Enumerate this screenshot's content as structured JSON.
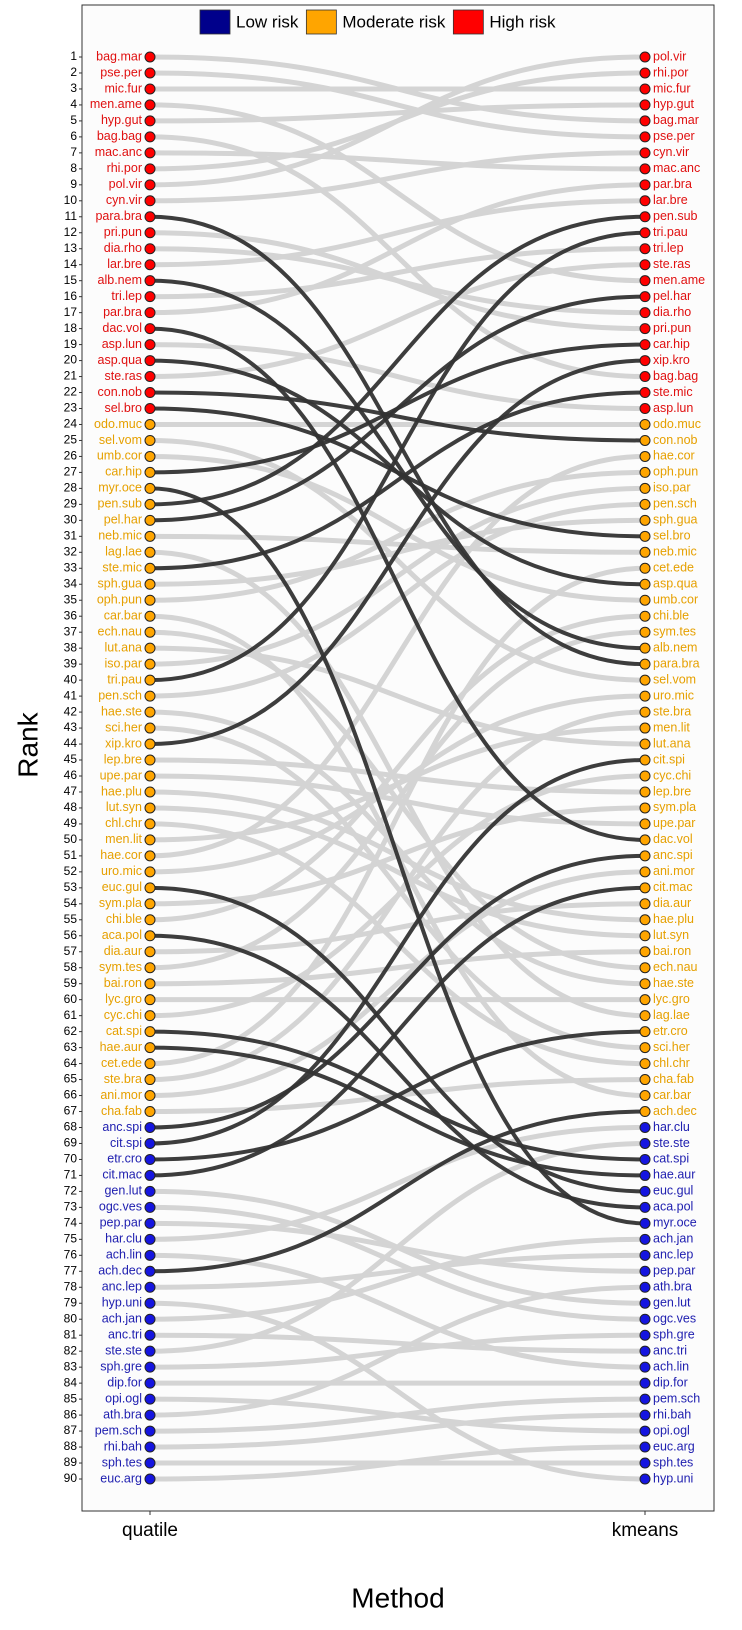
{
  "chart_data": {
    "type": "bump",
    "x_label": "Method",
    "y_label": "Rank",
    "ylim": [
      90,
      1
    ],
    "yticks": [
      1,
      2,
      3,
      4,
      5,
      6,
      7,
      8,
      9,
      10,
      11,
      12,
      13,
      14,
      15,
      16,
      17,
      18,
      19,
      20,
      21,
      22,
      23,
      24,
      25,
      26,
      27,
      28,
      29,
      30,
      31,
      32,
      33,
      34,
      35,
      36,
      37,
      38,
      39,
      40,
      41,
      42,
      43,
      44,
      45,
      46,
      47,
      48,
      49,
      50,
      51,
      52,
      53,
      54,
      55,
      56,
      57,
      58,
      59,
      60,
      61,
      62,
      63,
      64,
      65,
      66,
      67,
      68,
      69,
      70,
      71,
      72,
      73,
      74,
      75,
      76,
      77,
      78,
      79,
      80,
      81,
      82,
      83,
      84,
      85,
      86,
      87,
      88,
      89,
      90
    ],
    "columns": [
      {
        "name": "quatile",
        "labels": [
          "bag.mar",
          "pse.per",
          "mic.fur",
          "men.ame",
          "hyp.gut",
          "bag.bag",
          "mac.anc",
          "rhi.por",
          "pol.vir",
          "cyn.vir",
          "para.bra",
          "pri.pun",
          "dia.rho",
          "lar.bre",
          "alb.nem",
          "tri.lep",
          "par.bra",
          "dac.vol",
          "asp.lun",
          "asp.qua",
          "ste.ras",
          "con.nob",
          "sel.bro",
          "odo.muc",
          "sel.vom",
          "umb.cor",
          "car.hip",
          "myr.oce",
          "pen.sub",
          "pel.har",
          "neb.mic",
          "lag.lae",
          "ste.mic",
          "sph.gua",
          "oph.pun",
          "car.bar",
          "ech.nau",
          "lut.ana",
          "iso.par",
          "tri.pau",
          "pen.sch",
          "hae.ste",
          "sci.her",
          "xip.kro",
          "lep.bre",
          "upe.par",
          "hae.plu",
          "lut.syn",
          "chl.chr",
          "men.lit",
          "hae.cor",
          "uro.mic",
          "euc.gul",
          "sym.pla",
          "chi.ble",
          "aca.pol",
          "dia.aur",
          "sym.tes",
          "bai.ron",
          "lyc.gro",
          "cyc.chi",
          "cat.spi",
          "hae.aur",
          "cet.ede",
          "ste.bra",
          "ani.mor",
          "cha.fab",
          "anc.spi",
          "cit.spi",
          "etr.cro",
          "cit.mac",
          "gen.lut",
          "ogc.ves",
          "pep.par",
          "har.clu",
          "ach.lin",
          "ach.dec",
          "anc.lep",
          "hyp.uni",
          "ach.jan",
          "anc.tri",
          "ste.ste",
          "sph.gre",
          "dip.for",
          "opi.ogl",
          "ath.bra",
          "pem.sch",
          "rhi.bah",
          "sph.tes",
          "euc.arg"
        ]
      },
      {
        "name": "kmeans",
        "labels": [
          "pol.vir",
          "rhi.por",
          "mic.fur",
          "hyp.gut",
          "bag.mar",
          "pse.per",
          "cyn.vir",
          "mac.anc",
          "par.bra",
          "lar.bre",
          "pen.sub",
          "tri.pau",
          "tri.lep",
          "ste.ras",
          "men.ame",
          "pel.har",
          "dia.rho",
          "pri.pun",
          "car.hip",
          "xip.kro",
          "bag.bag",
          "ste.mic",
          "asp.lun",
          "odo.muc",
          "con.nob",
          "hae.cor",
          "oph.pun",
          "iso.par",
          "pen.sch",
          "sph.gua",
          "sel.bro",
          "neb.mic",
          "cet.ede",
          "asp.qua",
          "umb.cor",
          "chi.ble",
          "sym.tes",
          "alb.nem",
          "para.bra",
          "sel.vom",
          "uro.mic",
          "ste.bra",
          "men.lit",
          "lut.ana",
          "cit.spi",
          "cyc.chi",
          "lep.bre",
          "sym.pla",
          "upe.par",
          "dac.vol",
          "anc.spi",
          "ani.mor",
          "cit.mac",
          "dia.aur",
          "hae.plu",
          "lut.syn",
          "bai.ron",
          "ech.nau",
          "hae.ste",
          "lyc.gro",
          "lag.lae",
          "etr.cro",
          "sci.her",
          "chl.chr",
          "cha.fab",
          "car.bar",
          "ach.dec",
          "har.clu",
          "ste.ste",
          "cat.spi",
          "hae.aur",
          "euc.gul",
          "aca.pol",
          "myr.oce",
          "ach.jan",
          "anc.lep",
          "pep.par",
          "ath.bra",
          "gen.lut",
          "ogc.ves",
          "sph.gre",
          "anc.tri",
          "ach.lin",
          "dip.for",
          "pem.sch",
          "rhi.bah",
          "opi.ogl",
          "euc.arg",
          "sph.tes",
          "hyp.uni"
        ]
      }
    ],
    "series": [
      {
        "name": "Low risk",
        "color": "#00008b",
        "ranges": [
          [
            68,
            90
          ],
          [
            68,
            90
          ]
        ]
      },
      {
        "name": "Moderate risk",
        "color": "#ffa500",
        "ranges": [
          [
            24,
            67
          ],
          [
            24,
            67
          ]
        ]
      },
      {
        "name": "High risk",
        "color": "#ff0000",
        "ranges": [
          [
            1,
            23
          ],
          [
            1,
            23
          ]
        ]
      }
    ]
  }
}
